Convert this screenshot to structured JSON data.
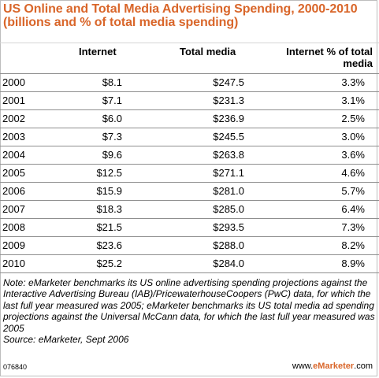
{
  "chart_data": {
    "type": "table",
    "title": "US Online and Total Media Advertising Spending, 2000-2010 (billions and % of total media spending)",
    "columns": [
      "",
      "Internet",
      "Total media",
      "Internet % of total media"
    ],
    "rows": [
      {
        "year": "2000",
        "internet": "$8.1",
        "total_media": "$247.5",
        "pct": "3.3%"
      },
      {
        "year": "2001",
        "internet": "$7.1",
        "total_media": "$231.3",
        "pct": "3.1%"
      },
      {
        "year": "2002",
        "internet": "$6.0",
        "total_media": "$236.9",
        "pct": "2.5%"
      },
      {
        "year": "2003",
        "internet": "$7.3",
        "total_media": "$245.5",
        "pct": "3.0%"
      },
      {
        "year": "2004",
        "internet": "$9.6",
        "total_media": "$263.8",
        "pct": "3.6%"
      },
      {
        "year": "2005",
        "internet": "$12.5",
        "total_media": "$271.1",
        "pct": "4.6%"
      },
      {
        "year": "2006",
        "internet": "$15.9",
        "total_media": "$281.0",
        "pct": "5.7%"
      },
      {
        "year": "2007",
        "internet": "$18.3",
        "total_media": "$285.0",
        "pct": "6.4%"
      },
      {
        "year": "2008",
        "internet": "$21.5",
        "total_media": "$293.5",
        "pct": "7.3%"
      },
      {
        "year": "2009",
        "internet": "$23.6",
        "total_media": "$288.0",
        "pct": "8.2%"
      },
      {
        "year": "2010",
        "internet": "$25.2",
        "total_media": "$284.0",
        "pct": "8.9%"
      }
    ],
    "note": "Note: eMarketer benchmarks its US online advertising spending projections against the Interactive Advertising Bureau (IAB)/PricewaterhouseCoopers (PwC) data, for which the last full year measured was 2005; eMarketer benchmarks its US total media ad spending projections against the Universal McCann data, for which the last full year measured was 2005",
    "source": "Source: eMarketer, Sept 2006",
    "chart_id": "076840",
    "footer_prefix": "www.",
    "footer_brand": "eMarketer",
    "footer_suffix": ".com",
    "colors": {
      "title": "#d9662a",
      "brand": "#d9662a",
      "rule": "#8f8f8f"
    }
  }
}
